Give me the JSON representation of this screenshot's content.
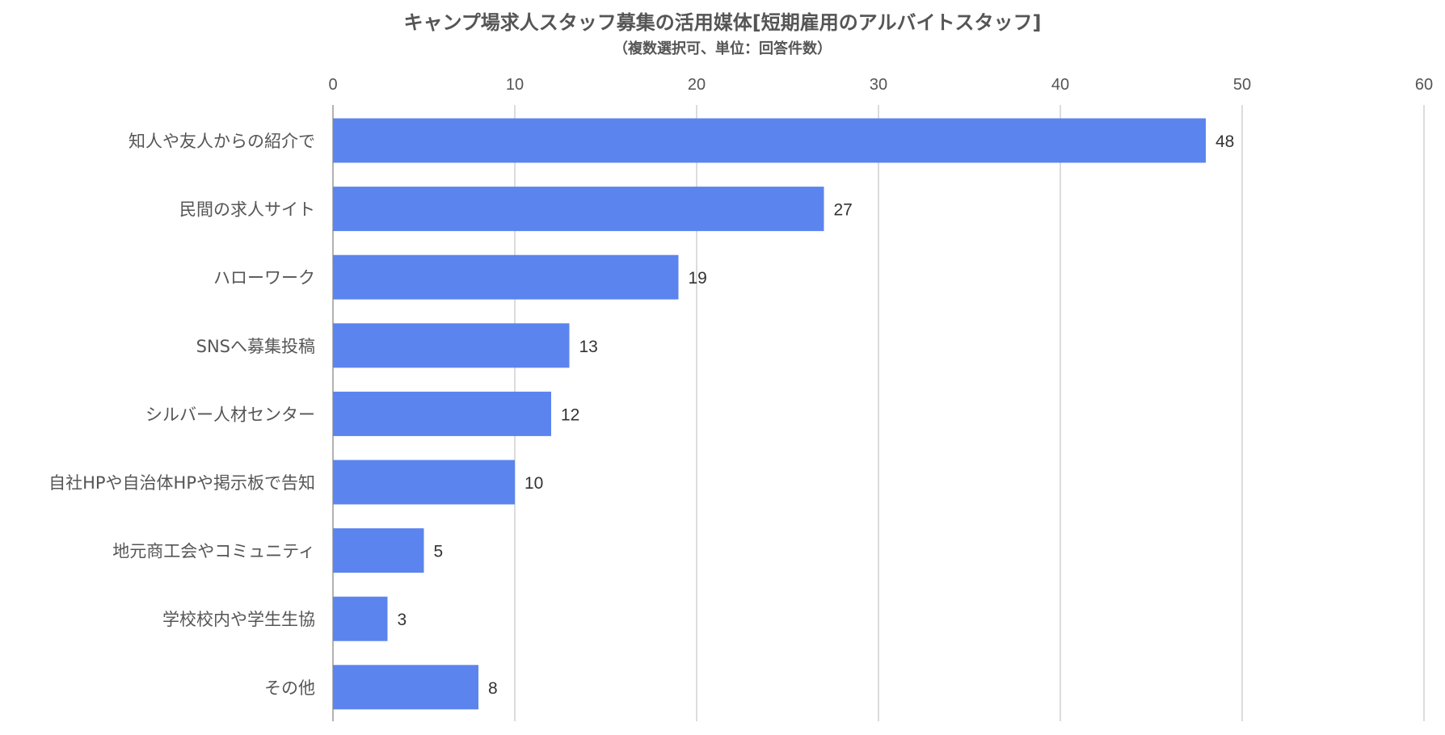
{
  "chart_data": {
    "type": "bar",
    "orientation": "horizontal",
    "title": "キャンプ場求人スタッフ募集の活用媒体[短期雇用のアルバイトスタッフ]",
    "subtitle": "（複数選択可、単位：回答件数）",
    "categories": [
      "知人や友人からの紹介で",
      "民間の求人サイト",
      "ハローワーク",
      "SNSへ募集投稿",
      "シルバー人材センター",
      "自社HPや自治体HPや掲示板で告知",
      "地元商工会やコミュニティ",
      "学校校内や学生生協",
      "その他"
    ],
    "values": [
      48,
      27,
      19,
      13,
      12,
      10,
      5,
      3,
      8
    ],
    "xlim": [
      0,
      60
    ],
    "xticks": [
      "0",
      "10",
      "20",
      "30",
      "40",
      "50",
      "60"
    ],
    "xaxis_position": "top",
    "grid": true,
    "data_labels": true,
    "legend": "none",
    "bar_color": "#5b84ee",
    "grid_color": "#d0d0d0",
    "label_color": "#555555",
    "value_label_color": "#333333"
  }
}
